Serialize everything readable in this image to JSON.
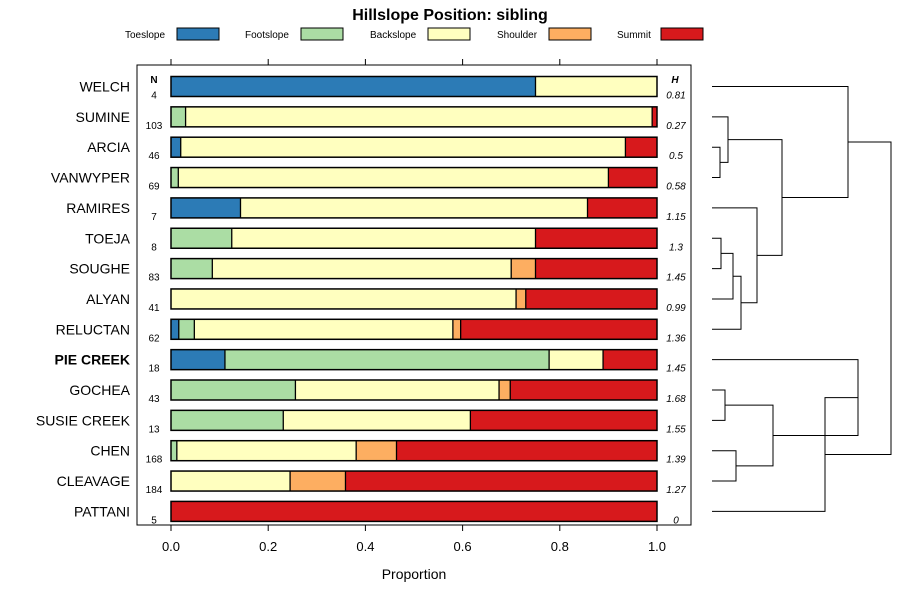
{
  "chart_data": {
    "type": "bar",
    "stacked": "horizontal-proportion",
    "title": "Hillslope Position: sibling",
    "xlabel": "Proportion",
    "xlim": [
      0,
      1
    ],
    "x_ticks": [
      0,
      0.2,
      0.4,
      0.6,
      0.8,
      1
    ],
    "x_tick_labels": [
      "0.0",
      "0.2",
      "0.4",
      "0.6",
      "0.8",
      "1.0"
    ],
    "n_header": "N",
    "h_header": "H",
    "legend_position": "top",
    "legend": [
      {
        "name": "Toeslope",
        "color": "#2C7BB6"
      },
      {
        "name": "Footslope",
        "color": "#ABDDA4"
      },
      {
        "name": "Backslope",
        "color": "#FFFFBF"
      },
      {
        "name": "Shoulder",
        "color": "#FDAE61"
      },
      {
        "name": "Summit",
        "color": "#D7191C"
      }
    ],
    "rows": [
      {
        "label": "WELCH",
        "bold": false,
        "n": "4",
        "h": "0.81",
        "values": [
          0.75,
          0,
          0.25,
          0,
          0
        ]
      },
      {
        "label": "SUMINE",
        "bold": false,
        "n": "103",
        "h": "0.27",
        "values": [
          0,
          0.03,
          0.96,
          0,
          0.01
        ]
      },
      {
        "label": "ARCIA",
        "bold": false,
        "n": "46",
        "h": "0.5",
        "values": [
          0.02,
          0,
          0.915,
          0,
          0.065
        ]
      },
      {
        "label": "VANWYPER",
        "bold": false,
        "n": "69",
        "h": "0.58",
        "values": [
          0,
          0.015,
          0.885,
          0,
          0.1
        ]
      },
      {
        "label": "RAMIRES",
        "bold": false,
        "n": "7",
        "h": "1.15",
        "values": [
          0.143,
          0,
          0.714,
          0,
          0.143
        ]
      },
      {
        "label": "TOEJA",
        "bold": false,
        "n": "8",
        "h": "1.3",
        "values": [
          0,
          0.125,
          0.625,
          0,
          0.25
        ]
      },
      {
        "label": "SOUGHE",
        "bold": false,
        "n": "83",
        "h": "1.45",
        "values": [
          0,
          0.085,
          0.615,
          0.05,
          0.25
        ]
      },
      {
        "label": "ALYAN",
        "bold": false,
        "n": "41",
        "h": "0.99",
        "values": [
          0,
          0,
          0.71,
          0.02,
          0.27
        ]
      },
      {
        "label": "RELUCTAN",
        "bold": false,
        "n": "62",
        "h": "1.36",
        "values": [
          0.016,
          0.032,
          0.532,
          0.016,
          0.404
        ]
      },
      {
        "label": "PIE CREEK",
        "bold": true,
        "n": "18",
        "h": "1.45",
        "values": [
          0.111,
          0.667,
          0.111,
          0,
          0.111
        ]
      },
      {
        "label": "GOCHEA",
        "bold": false,
        "n": "43",
        "h": "1.68",
        "values": [
          0,
          0.256,
          0.419,
          0.023,
          0.302
        ]
      },
      {
        "label": "SUSIE CREEK",
        "bold": false,
        "n": "13",
        "h": "1.55",
        "values": [
          0,
          0.231,
          0.385,
          0,
          0.384
        ]
      },
      {
        "label": "CHEN",
        "bold": false,
        "n": "168",
        "h": "1.39",
        "values": [
          0,
          0.012,
          0.369,
          0.083,
          0.536
        ]
      },
      {
        "label": "CLEAVAGE",
        "bold": false,
        "n": "184",
        "h": "1.27",
        "values": [
          0,
          0,
          0.245,
          0.114,
          0.641
        ]
      },
      {
        "label": "PATTANI",
        "bold": false,
        "n": "5",
        "h": "0",
        "values": [
          0,
          0,
          0,
          0,
          1
        ]
      }
    ]
  }
}
